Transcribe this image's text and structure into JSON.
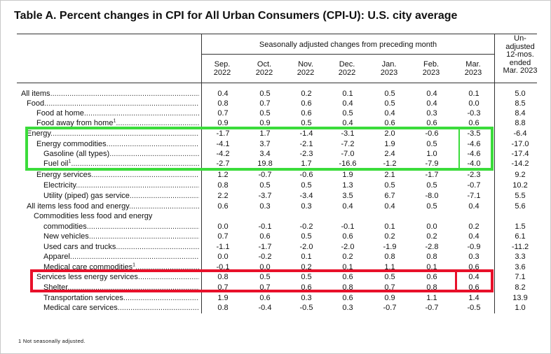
{
  "title": "Table A. Percent changes in CPI for All Urban Consumers (CPI-U): U.S. city average",
  "header": {
    "group_label": "Seasonally adjusted changes from preceding month",
    "columns": [
      {
        "line1": "Sep.",
        "line2": "2022"
      },
      {
        "line1": "Oct.",
        "line2": "2022"
      },
      {
        "line1": "Nov.",
        "line2": "2022"
      },
      {
        "line1": "Dec.",
        "line2": "2022"
      },
      {
        "line1": "Jan.",
        "line2": "2023"
      },
      {
        "line1": "Feb.",
        "line2": "2023"
      },
      {
        "line1": "Mar.",
        "line2": "2023"
      }
    ],
    "unadjusted": [
      "Un-",
      "adjusted",
      "12-mos.",
      "ended",
      "Mar. 2023"
    ]
  },
  "rows": [
    {
      "label": "All items",
      "footnote": "",
      "values": [
        "0.4",
        "0.5",
        "0.2",
        "0.1",
        "0.5",
        "0.4",
        "0.1",
        "5.0"
      ]
    },
    {
      "label": "Food",
      "footnote": "",
      "values": [
        "0.8",
        "0.7",
        "0.6",
        "0.4",
        "0.5",
        "0.4",
        "0.0",
        "8.5"
      ]
    },
    {
      "label": "Food at home",
      "footnote": "",
      "values": [
        "0.7",
        "0.5",
        "0.6",
        "0.5",
        "0.4",
        "0.3",
        "-0.3",
        "8.4"
      ]
    },
    {
      "label": "Food away from home",
      "footnote": "1",
      "values": [
        "0.9",
        "0.9",
        "0.5",
        "0.4",
        "0.6",
        "0.6",
        "0.6",
        "8.8"
      ]
    },
    {
      "label": "Energy",
      "footnote": "",
      "values": [
        "-1.7",
        "1.7",
        "-1.4",
        "-3.1",
        "2.0",
        "-0.6",
        "-3.5",
        "-6.4"
      ]
    },
    {
      "label": "Energy commodities",
      "footnote": "",
      "values": [
        "-4.1",
        "3.7",
        "-2.1",
        "-7.2",
        "1.9",
        "0.5",
        "-4.6",
        "-17.0"
      ]
    },
    {
      "label": "Gasoline (all types)",
      "footnote": "",
      "values": [
        "-4.2",
        "3.4",
        "-2.3",
        "-7.0",
        "2.4",
        "1.0",
        "-4.6",
        "-17.4"
      ]
    },
    {
      "label": "Fuel oil",
      "footnote": "1",
      "values": [
        "-2.7",
        "19.8",
        "1.7",
        "-16.6",
        "-1.2",
        "-7.9",
        "-4.0",
        "-14.2"
      ]
    },
    {
      "label": "Energy services",
      "footnote": "",
      "values": [
        "1.2",
        "-0.7",
        "-0.6",
        "1.9",
        "2.1",
        "-1.7",
        "-2.3",
        "9.2"
      ]
    },
    {
      "label": "Electricity",
      "footnote": "",
      "values": [
        "0.8",
        "0.5",
        "0.5",
        "1.3",
        "0.5",
        "0.5",
        "-0.7",
        "10.2"
      ]
    },
    {
      "label": "Utility (piped) gas service",
      "footnote": "",
      "values": [
        "2.2",
        "-3.7",
        "-3.4",
        "3.5",
        "6.7",
        "-8.0",
        "-7.1",
        "5.5"
      ]
    },
    {
      "label": "All items less food and energy",
      "footnote": "",
      "values": [
        "0.6",
        "0.3",
        "0.3",
        "0.4",
        "0.4",
        "0.5",
        "0.4",
        "5.6"
      ]
    },
    {
      "label": "Commodities less food and energy",
      "footnote": "",
      "values": [
        "",
        "",
        "",
        "",
        "",
        "",
        "",
        ""
      ]
    },
    {
      "label": "commodities",
      "footnote": "",
      "values": [
        "0.0",
        "-0.1",
        "-0.2",
        "-0.1",
        "0.1",
        "0.0",
        "0.2",
        "1.5"
      ]
    },
    {
      "label": "New vehicles",
      "footnote": "",
      "values": [
        "0.7",
        "0.6",
        "0.5",
        "0.6",
        "0.2",
        "0.2",
        "0.4",
        "6.1"
      ]
    },
    {
      "label": "Used cars and trucks",
      "footnote": "",
      "values": [
        "-1.1",
        "-1.7",
        "-2.0",
        "-2.0",
        "-1.9",
        "-2.8",
        "-0.9",
        "-11.2"
      ]
    },
    {
      "label": "Apparel",
      "footnote": "",
      "values": [
        "0.0",
        "-0.2",
        "0.1",
        "0.2",
        "0.8",
        "0.8",
        "0.3",
        "3.3"
      ]
    },
    {
      "label": "Medical care commodities",
      "footnote": "1",
      "values": [
        "-0.1",
        "0.0",
        "0.2",
        "0.1",
        "1.1",
        "0.1",
        "0.6",
        "3.6"
      ]
    },
    {
      "label": "Services less energy services",
      "footnote": "",
      "values": [
        "0.8",
        "0.5",
        "0.5",
        "0.6",
        "0.5",
        "0.6",
        "0.4",
        "7.1"
      ]
    },
    {
      "label": "Shelter",
      "footnote": "",
      "values": [
        "0.7",
        "0.7",
        "0.6",
        "0.8",
        "0.7",
        "0.8",
        "0.6",
        "8.2"
      ]
    },
    {
      "label": "Transportation services",
      "footnote": "",
      "values": [
        "1.9",
        "0.6",
        "0.3",
        "0.6",
        "0.9",
        "1.1",
        "1.4",
        "13.9"
      ]
    },
    {
      "label": "Medical care services",
      "footnote": "",
      "values": [
        "0.8",
        "-0.4",
        "-0.5",
        "0.3",
        "-0.7",
        "-0.7",
        "-0.5",
        "1.0"
      ]
    }
  ],
  "footnote": "1  Not seasonally adjusted.",
  "colors": {
    "green_highlight": "#3bdc3b",
    "red_highlight": "#e8102a"
  }
}
